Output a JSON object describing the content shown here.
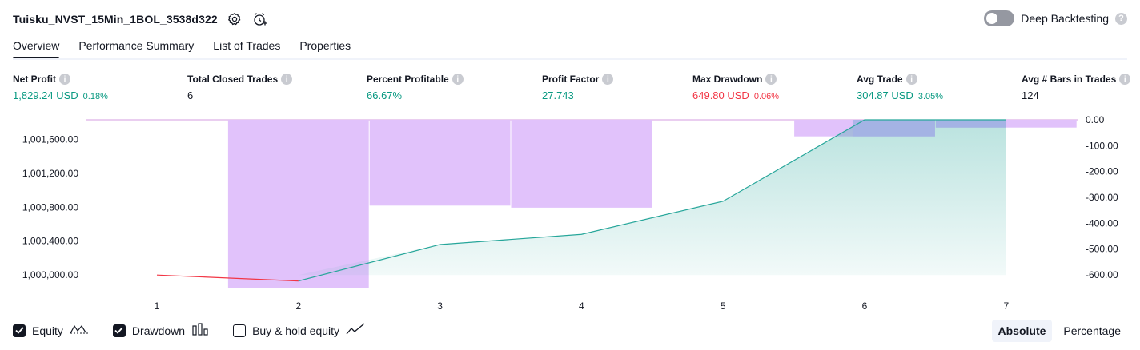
{
  "header": {
    "title": "Tuisku_NVST_15Min_1BOL_3538d322",
    "settings_icon": "gear-icon",
    "alert_icon": "alarm-clock-plus-icon"
  },
  "deep_backtesting": {
    "label": "Deep Backtesting",
    "enabled": false
  },
  "tabs": [
    {
      "label": "Overview",
      "active": true
    },
    {
      "label": "Performance Summary",
      "active": false
    },
    {
      "label": "List of Trades",
      "active": false
    },
    {
      "label": "Properties",
      "active": false
    }
  ],
  "stats": [
    {
      "label": "Net Profit",
      "value": "1,829.24 USD",
      "sub": "0.18%",
      "color": "green"
    },
    {
      "label": "Total Closed Trades",
      "value": "6",
      "sub": "",
      "color": "dark"
    },
    {
      "label": "Percent Profitable",
      "value": "66.67%",
      "sub": "",
      "color": "green"
    },
    {
      "label": "Profit Factor",
      "value": "27.743",
      "sub": "",
      "color": "green"
    },
    {
      "label": "Max Drawdown",
      "value": "649.80 USD",
      "sub": "0.06%",
      "color": "red"
    },
    {
      "label": "Avg Trade",
      "value": "304.87 USD",
      "sub": "3.05%",
      "color": "green"
    },
    {
      "label": "Avg # Bars in Trades",
      "value": "124",
      "sub": "",
      "color": "dark"
    }
  ],
  "chart_data": {
    "type": "area",
    "x": [
      1,
      2,
      3,
      4,
      5,
      6,
      7
    ],
    "x_tick_labels": [
      "1",
      "2",
      "3",
      "4",
      "5",
      "6",
      "7"
    ],
    "left_axis_labels": [
      "1,001,600.00",
      "1,001,200.00",
      "1,000,800.00",
      "1,000,400.00",
      "1,000,000.00"
    ],
    "right_axis_labels": [
      "0.00",
      "-100.00",
      "-200.00",
      "-300.00",
      "-400.00",
      "-500.00",
      "-600.00"
    ],
    "equity": {
      "values": [
        1000000,
        999930,
        1000360,
        1000480,
        1000870,
        1001829.24,
        1001829.24
      ],
      "ylim": [
        999870,
        1001829.24
      ]
    },
    "drawdown": {
      "values": [
        0,
        -649.8,
        -332,
        -340,
        0,
        -64,
        -30
      ],
      "bar_positions": [
        2,
        3,
        4,
        6,
        7
      ],
      "ylim": [
        -649.8,
        0
      ]
    },
    "colors": {
      "equity_line": "#26a69a",
      "equity_fill": "#26a69a",
      "equity_negative_line": "#f23645",
      "drawdown_bar": "#e1c2fb",
      "drawdown_bar_overlap": "#a3b2e5",
      "zero_line": "#d59de0"
    }
  },
  "legend": [
    {
      "label": "Equity",
      "checked": true,
      "icon": "equity-line-icon"
    },
    {
      "label": "Drawdown",
      "checked": true,
      "icon": "drawdown-bars-icon"
    },
    {
      "label": "Buy & hold equity",
      "checked": false,
      "icon": "buy-hold-line-icon"
    }
  ],
  "view_mode": {
    "options": [
      "Absolute",
      "Percentage"
    ],
    "selected": "Absolute"
  }
}
